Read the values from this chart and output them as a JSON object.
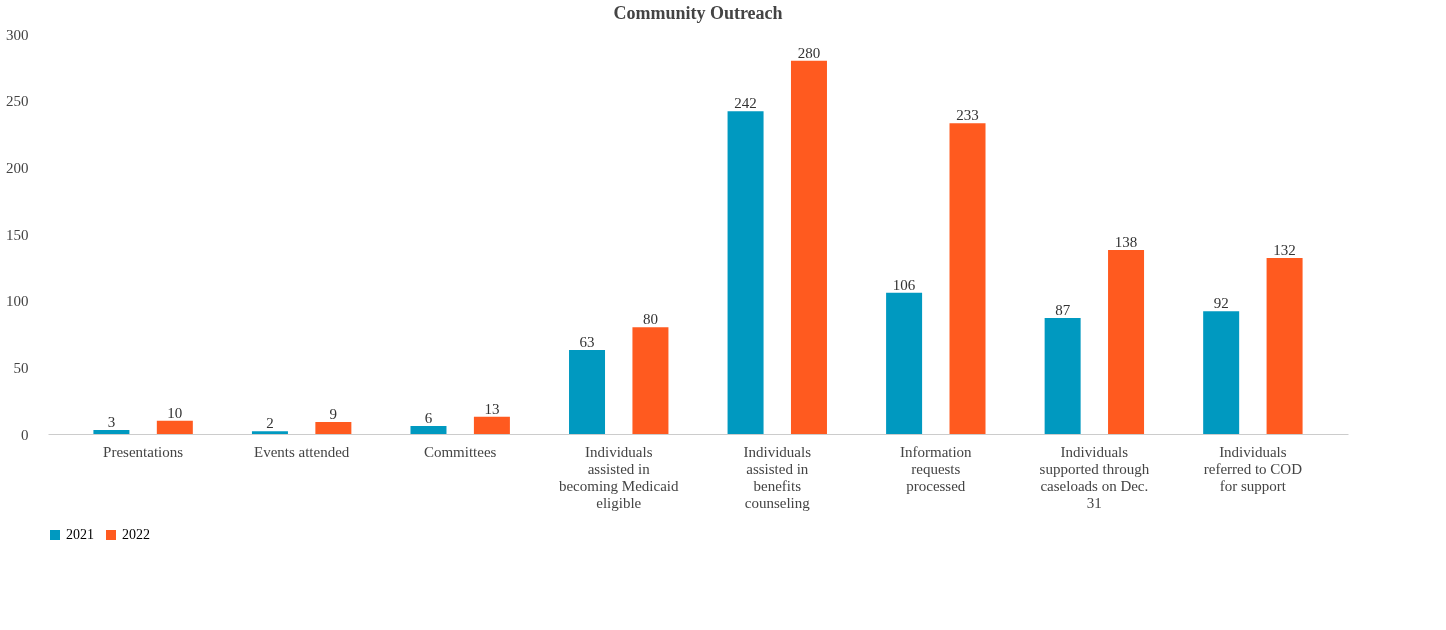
{
  "chart_data": {
    "type": "bar",
    "title": "Community Outreach",
    "categories": [
      "Presentations",
      "Events attended",
      "Committees",
      "Individuals assisted in becoming Medicaid eligible",
      "Individuals assisted in benefits counseling",
      "Information requests processed",
      "Individuals supported through caseloads on Dec. 31",
      "Individuals referred to COD for support"
    ],
    "series": [
      {
        "name": "2021",
        "color": "#0099c0",
        "values": [
          3,
          2,
          6,
          63,
          242,
          106,
          87,
          92
        ]
      },
      {
        "name": "2022",
        "color": "#ff5a1f",
        "values": [
          10,
          9,
          13,
          80,
          280,
          233,
          138,
          132
        ]
      }
    ],
    "ylim": [
      0,
      300
    ],
    "yticks": [
      0,
      50,
      100,
      150,
      200,
      250,
      300
    ],
    "grid": false,
    "legend": "bottom",
    "data_labels": true
  }
}
